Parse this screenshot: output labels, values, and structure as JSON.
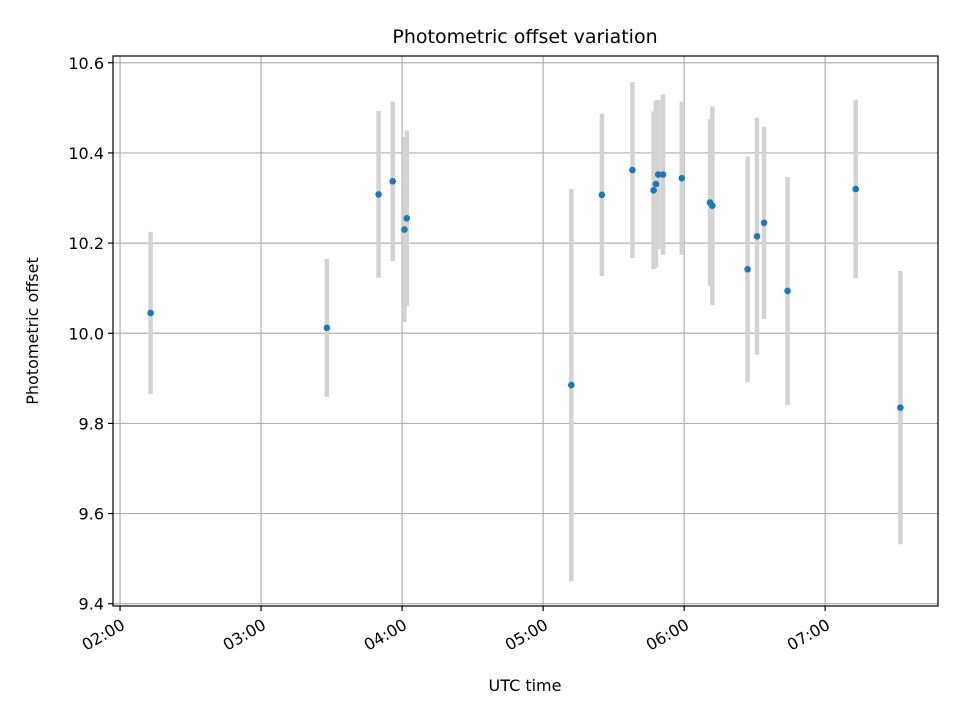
{
  "chart_data": {
    "type": "scatter",
    "title": "Photometric offset variation",
    "xlabel": "UTC time",
    "ylabel": "Photometric offset",
    "xlim": [
      "01:57",
      "07:48"
    ],
    "ylim": [
      9.395,
      10.615
    ],
    "grid": true,
    "x_ticks": [
      "02:00",
      "03:00",
      "04:00",
      "05:00",
      "06:00",
      "07:00"
    ],
    "y_ticks": [
      "9.4",
      "9.6",
      "9.8",
      "10.0",
      "10.2",
      "10.4",
      "10.6"
    ],
    "colors": {
      "point": "#1f77b4",
      "errorbar": "#d3d3d3",
      "grid": "#b0b0b0"
    },
    "points": [
      {
        "x": "02:13",
        "y": 10.045,
        "err": 0.18
      },
      {
        "x": "03:28",
        "y": 10.012,
        "err": 0.153
      },
      {
        "x": "03:50",
        "y": 10.308,
        "err": 0.185
      },
      {
        "x": "03:56",
        "y": 10.337,
        "err": 0.177
      },
      {
        "x": "04:01",
        "y": 10.23,
        "err": 0.205
      },
      {
        "x": "04:02",
        "y": 10.255,
        "err": 0.195
      },
      {
        "x": "05:12",
        "y": 9.885,
        "err": 0.435
      },
      {
        "x": "05:25",
        "y": 10.307,
        "err": 0.18
      },
      {
        "x": "05:38",
        "y": 10.362,
        "err": 0.195
      },
      {
        "x": "05:47",
        "y": 10.317,
        "err": 0.175
      },
      {
        "x": "05:48",
        "y": 10.331,
        "err": 0.185
      },
      {
        "x": "05:49",
        "y": 10.352,
        "err": 0.165
      },
      {
        "x": "05:51",
        "y": 10.352,
        "err": 0.178
      },
      {
        "x": "05:59",
        "y": 10.344,
        "err": 0.17
      },
      {
        "x": "06:11",
        "y": 10.29,
        "err": 0.185
      },
      {
        "x": "06:12",
        "y": 10.283,
        "err": 0.22
      },
      {
        "x": "06:27",
        "y": 10.142,
        "err": 0.25
      },
      {
        "x": "06:31",
        "y": 10.215,
        "err": 0.263
      },
      {
        "x": "06:34",
        "y": 10.245,
        "err": 0.213
      },
      {
        "x": "06:44",
        "y": 10.094,
        "err": 0.253
      },
      {
        "x": "07:13",
        "y": 10.32,
        "err": 0.198
      },
      {
        "x": "07:32",
        "y": 9.835,
        "err": 0.303
      }
    ]
  }
}
